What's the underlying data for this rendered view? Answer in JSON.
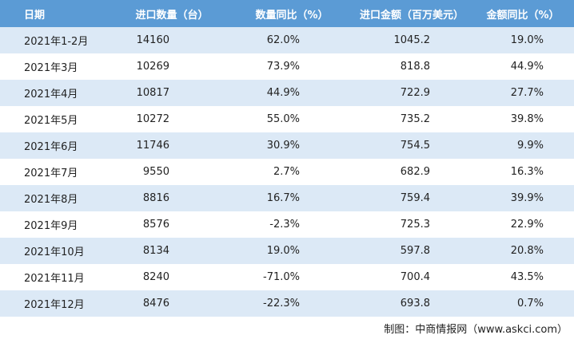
{
  "table": {
    "header": [
      "日期",
      "进口数量（台）",
      "数量同比（%）",
      "进口金额（百万美元）",
      "金额同比（%）"
    ],
    "rows": [
      [
        "2021年1-2月",
        "14160",
        "62.0%",
        "1045.2",
        "19.0%"
      ],
      [
        "2021年3月",
        "10269",
        "73.9%",
        "818.8",
        "44.9%"
      ],
      [
        "2021年4月",
        "10817",
        "44.9%",
        "722.9",
        "27.7%"
      ],
      [
        "2021年5月",
        "10272",
        "55.0%",
        "735.2",
        "39.8%"
      ],
      [
        "2021年6月",
        "11746",
        "30.9%",
        "754.5",
        "9.9%"
      ],
      [
        "2021年7月",
        "9550",
        "2.7%",
        "682.9",
        "16.3%"
      ],
      [
        "2021年8月",
        "8816",
        "16.7%",
        "759.4",
        "39.9%"
      ],
      [
        "2021年9月",
        "8576",
        "-2.3%",
        "725.3",
        "22.9%"
      ],
      [
        "2021年10月",
        "8134",
        "19.0%",
        "597.8",
        "20.8%"
      ],
      [
        "2021年11月",
        "8240",
        "-71.0%",
        "700.4",
        "43.5%"
      ],
      [
        "2021年12月",
        "8476",
        "-22.3%",
        "693.8",
        "0.7%"
      ]
    ]
  },
  "source": "制图：中商情报网（www.askci.com）"
}
